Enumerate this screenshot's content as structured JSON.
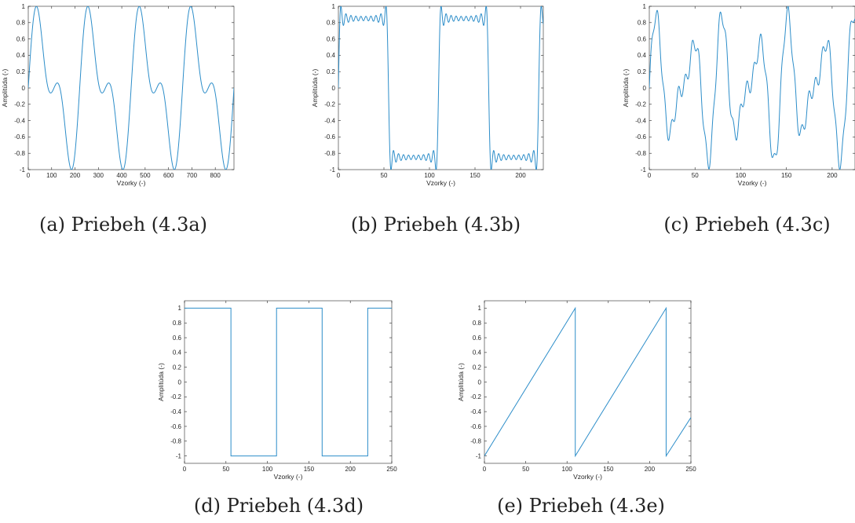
{
  "colors": {
    "line": "#2c8dc9",
    "axis": "#262626",
    "background": "#ffffff"
  },
  "chart_data": [
    {
      "id": "a",
      "type": "line",
      "caption": "(a) Priebeh (4.3a)",
      "xlabel": "Vzorky (-)",
      "ylabel": "Amplitúda (-)",
      "xlim": [
        0,
        880
      ],
      "ylim": [
        -1,
        1
      ],
      "xticks": [
        0,
        100,
        200,
        300,
        400,
        500,
        600,
        700,
        800
      ],
      "yticks": [
        -1,
        -0.8,
        -0.6,
        -0.4,
        -0.2,
        0,
        0.2,
        0.4,
        0.6,
        0.8,
        1
      ],
      "series": [
        {
          "function": "sum_of_sines",
          "components": [
            {
              "amplitude": 0.69,
              "period": 220
            },
            {
              "amplitude": 0.46,
              "period": 110
            }
          ]
        }
      ]
    },
    {
      "id": "b",
      "type": "line",
      "caption": "(b) Priebeh (4.3b)",
      "xlabel": "Vzorky (-)",
      "ylabel": "Amplitúda (-)",
      "xlim": [
        0,
        225
      ],
      "ylim": [
        -1,
        1
      ],
      "xticks": [
        0,
        50,
        100,
        150,
        200
      ],
      "yticks": [
        -1,
        -0.8,
        -0.6,
        -0.4,
        -0.2,
        0,
        0.2,
        0.4,
        0.6,
        0.8,
        1
      ],
      "series": [
        {
          "function": "fourier_square",
          "period": 110,
          "harmonics": [
            1,
            3,
            5,
            7,
            9,
            11,
            13,
            15,
            17,
            19
          ]
        }
      ]
    },
    {
      "id": "c",
      "type": "line",
      "caption": "(c) Priebeh (4.3c)",
      "xlabel": "Vzorky (-)",
      "ylabel": "Amplitúda (-)",
      "xlim": [
        0,
        225
      ],
      "ylim": [
        -1,
        1
      ],
      "xticks": [
        0,
        50,
        100,
        150,
        200
      ],
      "yticks": [
        -1,
        -0.8,
        -0.6,
        -0.4,
        -0.2,
        0,
        0.2,
        0.4,
        0.6,
        0.8,
        1
      ],
      "series": [
        {
          "function": "sum_of_sines",
          "components": [
            {
              "amplitude": 0.6,
              "period": 36
            },
            {
              "amplitude": 0.35,
              "period": 24
            },
            {
              "amplitude": 0.1,
              "period": 7.5
            }
          ]
        }
      ]
    },
    {
      "id": "d",
      "type": "line",
      "caption": "(d) Priebeh (4.3d)",
      "xlabel": "Vzorky (-)",
      "ylabel": "Amplitúda (-)",
      "xlim": [
        0,
        250
      ],
      "ylim": [
        -1.1,
        1.1
      ],
      "xticks": [
        0,
        50,
        100,
        150,
        200,
        250
      ],
      "yticks": [
        -1,
        -0.8,
        -0.6,
        -0.4,
        -0.2,
        0,
        0.2,
        0.4,
        0.6,
        0.8,
        1
      ],
      "series": [
        {
          "points": [
            [
              0,
              1
            ],
            [
              56,
              1
            ],
            [
              56,
              -1
            ],
            [
              111,
              -1
            ],
            [
              111,
              1
            ],
            [
              166,
              1
            ],
            [
              166,
              -1
            ],
            [
              221,
              -1
            ],
            [
              221,
              1
            ],
            [
              250,
              1
            ]
          ]
        }
      ]
    },
    {
      "id": "e",
      "type": "line",
      "caption": "(e) Priebeh (4.3e)",
      "xlabel": "Vzorky (-)",
      "ylabel": "Amplitúda (-)",
      "xlim": [
        0,
        250
      ],
      "ylim": [
        -1.1,
        1.1
      ],
      "xticks": [
        0,
        50,
        100,
        150,
        200,
        250
      ],
      "yticks": [
        -1,
        -0.8,
        -0.6,
        -0.4,
        -0.2,
        0,
        0.2,
        0.4,
        0.6,
        0.8,
        1
      ],
      "series": [
        {
          "points": [
            [
              0,
              -1
            ],
            [
              110,
              1
            ],
            [
              110,
              -1
            ],
            [
              220,
              1
            ],
            [
              220,
              -1
            ],
            [
              250,
              -0.48
            ]
          ]
        }
      ]
    }
  ]
}
